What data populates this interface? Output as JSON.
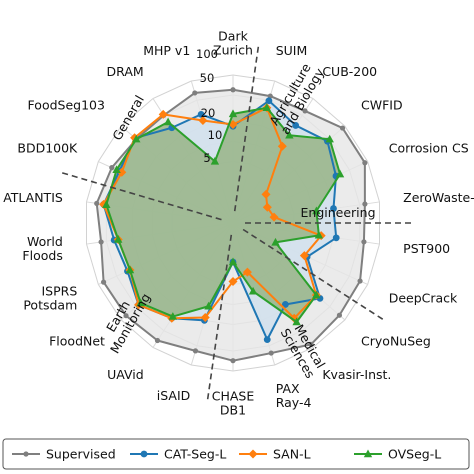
{
  "chart_data": {
    "type": "radar",
    "scale": "log",
    "rlim": [
      1,
      100
    ],
    "ticks": [
      "5",
      "10",
      "20",
      "50",
      "100"
    ],
    "tick_values": [
      5,
      10,
      20,
      50,
      100
    ],
    "grid": true,
    "categories": [
      "Dark\nZurich",
      "SUIM",
      "CUB-200",
      "CWFID",
      "Corrosion CS",
      "ZeroWaste-f",
      "PST900",
      "DeepCrack",
      "CryoNuSeg",
      "Kvasir-Inst.",
      "PAX\nRay-4",
      "CHASE\nDB1",
      "iSAID",
      "UAVid",
      "FloodNet",
      "ISPRS\nPotsdam",
      "World\nFloods",
      "ATLANTIS",
      "BDD100K",
      "FoodSeg103",
      "DRAM",
      "MHP v1"
    ],
    "groups": [
      {
        "label": "Agriculture\nand Biology",
        "color": "#555555"
      },
      {
        "label": "Engineering",
        "color": "#555555"
      },
      {
        "label": "Medical\nSciences",
        "color": "#555555"
      },
      {
        "label": "Earth\nMonitoring",
        "color": "#555555"
      },
      {
        "label": "General",
        "color": "#555555"
      }
    ],
    "series": [
      {
        "name": "CAT-Seg-L",
        "color": "#1f77b4",
        "marker": "circle",
        "values": [
          17,
          49,
          33,
          45,
          30,
          20,
          22,
          10,
          32,
          17,
          40,
          2.3,
          20,
          30,
          45,
          33,
          38,
          55,
          45,
          53,
          30,
          30
        ]
      },
      {
        "name": "SAN-L",
        "color": "#ff7f0e",
        "marker": "diamond",
        "values": [
          18,
          38,
          14,
          2.7,
          2.2,
          2.5,
          13,
          9,
          27,
          30,
          3.5,
          4.5,
          18,
          30,
          45,
          30,
          33,
          55,
          41,
          54,
          52,
          24
        ]
      },
      {
        "name": "OVSeg-L",
        "color": "#2ca02c",
        "marker": "triangle",
        "values": [
          26,
          38,
          22,
          50,
          35,
          11,
          12,
          3,
          27,
          35,
          7,
          2.3,
          12,
          28,
          41,
          30,
          33,
          50,
          50,
          50,
          38,
          5.5
        ]
      },
      {
        "name": "Supervised",
        "color": "#7f7f7f",
        "marker": "circle",
        "values": [
          60,
          58,
          60,
          90,
          90,
          60,
          58,
          75,
          78,
          88,
          65,
          70,
          60,
          75,
          80,
          82,
          60,
          70,
          60,
          50,
          50,
          65
        ]
      }
    ],
    "fills": {
      "Supervised": "#e6e6e6",
      "CAT-Seg-L": "#cfe0ee",
      "OVSeg-L": "#8fae78"
    },
    "legend_position": "bottom"
  }
}
